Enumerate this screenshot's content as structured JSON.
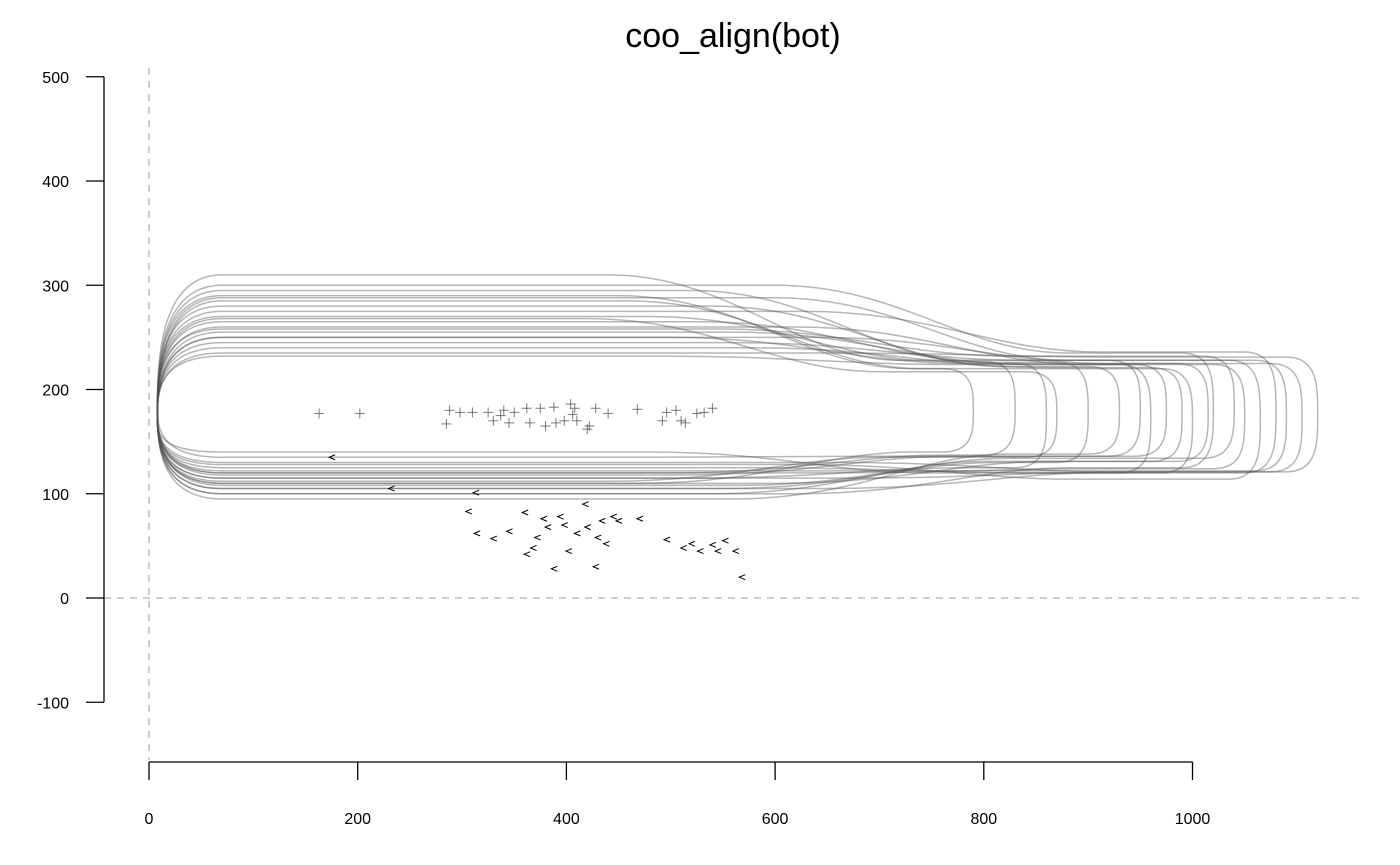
{
  "chart_data": {
    "type": "line",
    "title": "coo_align(bot)",
    "xlabel": "",
    "ylabel": "",
    "xlim": [
      0,
      1150
    ],
    "ylim": [
      -100,
      500
    ],
    "x_ticks": [
      0,
      200,
      400,
      600,
      800,
      1000
    ],
    "y_ticks": [
      -100,
      0,
      100,
      200,
      300,
      400,
      500
    ],
    "reference_lines": {
      "x": 0,
      "y": 0,
      "style": "dashed",
      "color": "#bdbdbd"
    },
    "line_color": "#505050",
    "grid": false,
    "legend": "none",
    "outline_series": [
      {
        "shoulder_x": 610,
        "right_x": 790,
        "cy": 180,
        "hw": 290,
        "hs": 110,
        "hn": 40
      },
      {
        "shoulder_x": 640,
        "right_x": 830,
        "cy": 182,
        "hw": 270,
        "hs": 120,
        "hn": 45
      },
      {
        "shoulder_x": 660,
        "right_x": 860,
        "cy": 175,
        "hw": 250,
        "hs": 115,
        "hn": 50
      },
      {
        "shoulder_x": 690,
        "right_x": 900,
        "cy": 178,
        "hw": 265,
        "hs": 105,
        "hn": 48
      },
      {
        "shoulder_x": 700,
        "right_x": 930,
        "cy": 180,
        "hw": 280,
        "hs": 95,
        "hn": 42
      },
      {
        "shoulder_x": 720,
        "right_x": 960,
        "cy": 172,
        "hw": 255,
        "hs": 125,
        "hn": 52
      },
      {
        "shoulder_x": 740,
        "right_x": 990,
        "cy": 176,
        "hw": 240,
        "hs": 110,
        "hn": 45
      },
      {
        "shoulder_x": 760,
        "right_x": 1020,
        "cy": 180,
        "hw": 300,
        "hs": 100,
        "hn": 55
      },
      {
        "shoulder_x": 780,
        "right_x": 1050,
        "cy": 174,
        "hw": 260,
        "hs": 120,
        "hn": 50
      },
      {
        "shoulder_x": 790,
        "right_x": 1080,
        "cy": 178,
        "hw": 275,
        "hs": 105,
        "hn": 58
      },
      {
        "shoulder_x": 800,
        "right_x": 1105,
        "cy": 173,
        "hw": 250,
        "hs": 130,
        "hn": 52
      },
      {
        "shoulder_x": 810,
        "right_x": 1120,
        "cy": 176,
        "hw": 235,
        "hs": 115,
        "hn": 55
      },
      {
        "shoulder_x": 600,
        "right_x": 950,
        "cy": 182,
        "hw": 310,
        "hs": 135,
        "hn": 46
      },
      {
        "shoulder_x": 620,
        "right_x": 1000,
        "cy": 170,
        "hw": 285,
        "hs": 140,
        "hn": 50
      },
      {
        "shoulder_x": 680,
        "right_x": 1015,
        "cy": 178,
        "hw": 295,
        "hs": 100,
        "hn": 47
      },
      {
        "shoulder_x": 720,
        "right_x": 1090,
        "cy": 175,
        "hw": 245,
        "hs": 122,
        "hn": 53
      },
      {
        "shoulder_x": 650,
        "right_x": 975,
        "cy": 180,
        "hw": 232,
        "hs": 118,
        "hn": 44
      },
      {
        "shoulder_x": 580,
        "right_x": 870,
        "cy": 176,
        "hw": 268,
        "hs": 112,
        "hn": 41
      },
      {
        "shoulder_x": 760,
        "right_x": 1065,
        "cy": 171,
        "hw": 288,
        "hs": 128,
        "hn": 57
      },
      {
        "shoulder_x": 705,
        "right_x": 1040,
        "cy": 183,
        "hw": 258,
        "hs": 108,
        "hn": 49
      }
    ],
    "centroid_points": [
      [
        163,
        177
      ],
      [
        202,
        177
      ],
      [
        285,
        167
      ],
      [
        288,
        180
      ],
      [
        298,
        178
      ],
      [
        310,
        178
      ],
      [
        325,
        178
      ],
      [
        330,
        170
      ],
      [
        337,
        175
      ],
      [
        340,
        180
      ],
      [
        345,
        168
      ],
      [
        350,
        178
      ],
      [
        362,
        182
      ],
      [
        365,
        168
      ],
      [
        375,
        182
      ],
      [
        380,
        165
      ],
      [
        388,
        183
      ],
      [
        390,
        168
      ],
      [
        398,
        170
      ],
      [
        404,
        186
      ],
      [
        406,
        176
      ],
      [
        410,
        170
      ],
      [
        420,
        162
      ],
      [
        428,
        182
      ],
      [
        440,
        177
      ],
      [
        468,
        181
      ],
      [
        492,
        170
      ],
      [
        496,
        178
      ],
      [
        505,
        180
      ],
      [
        510,
        170
      ],
      [
        514,
        168
      ],
      [
        525,
        177
      ],
      [
        532,
        178
      ],
      [
        540,
        182
      ],
      [
        408,
        182
      ],
      [
        422,
        165
      ]
    ],
    "start_markers": [
      [
        175,
        135
      ],
      [
        232,
        105
      ],
      [
        313,
        101
      ],
      [
        306,
        83
      ],
      [
        314,
        62
      ],
      [
        330,
        57
      ],
      [
        345,
        64
      ],
      [
        360,
        82
      ],
      [
        362,
        42
      ],
      [
        368,
        48
      ],
      [
        372,
        58
      ],
      [
        378,
        76
      ],
      [
        382,
        68
      ],
      [
        388,
        28
      ],
      [
        394,
        78
      ],
      [
        398,
        70
      ],
      [
        402,
        45
      ],
      [
        410,
        62
      ],
      [
        418,
        90
      ],
      [
        420,
        68
      ],
      [
        428,
        30
      ],
      [
        430,
        58
      ],
      [
        434,
        74
      ],
      [
        438,
        52
      ],
      [
        445,
        78
      ],
      [
        450,
        74
      ],
      [
        470,
        76
      ],
      [
        496,
        56
      ],
      [
        512,
        48
      ],
      [
        520,
        52
      ],
      [
        528,
        45
      ],
      [
        540,
        51
      ],
      [
        545,
        45
      ],
      [
        552,
        55
      ],
      [
        562,
        45
      ],
      [
        568,
        20
      ]
    ]
  }
}
